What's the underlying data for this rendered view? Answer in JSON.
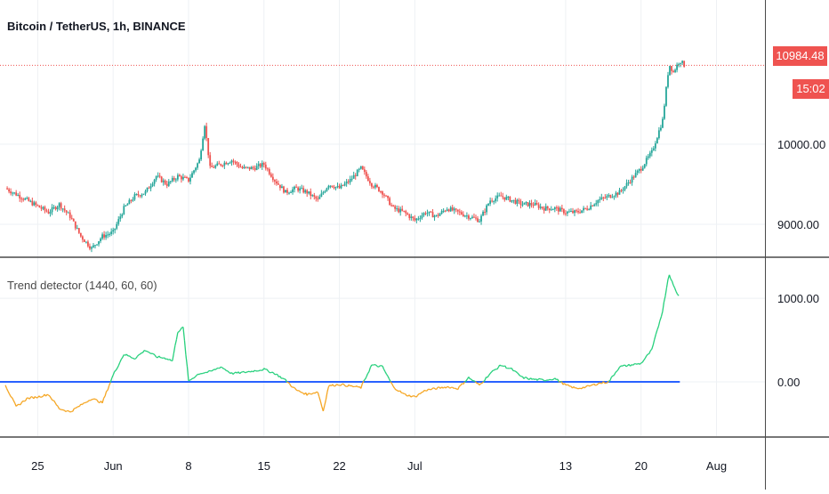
{
  "header": {
    "symbol_title": "Bitcoin / TetherUS, 1h, BINANCE",
    "indicator_title": "Trend detector (1440, 60, 60)"
  },
  "price_axis": {
    "last_price": "10984.48",
    "countdown": "15:02",
    "tag_color": "#ef5350"
  },
  "chart_data": [
    {
      "type": "candlestick",
      "title": "Bitcoin / TetherUS, 1h, BINANCE",
      "ylim": [
        8600,
        11800
      ],
      "yticks": [
        9000,
        10000
      ],
      "ytick_labels": [
        "9000.00",
        "10000.00"
      ],
      "last_price": 10984.48,
      "up_color": "#26a69a",
      "down_color": "#ef5350",
      "close_path": [
        [
          -3,
          9450
        ],
        [
          -1,
          9300
        ],
        [
          1,
          9150
        ],
        [
          2,
          9250
        ],
        [
          3,
          9100
        ],
        [
          4,
          8850
        ],
        [
          5,
          8700
        ],
        [
          6,
          8850
        ],
        [
          7,
          8900
        ],
        [
          8,
          9200
        ],
        [
          9,
          9350
        ],
        [
          10,
          9400
        ],
        [
          11,
          9600
        ],
        [
          12,
          9500
        ],
        [
          13,
          9600
        ],
        [
          14,
          9550
        ],
        [
          15,
          9800
        ],
        [
          15.5,
          10250
        ],
        [
          16,
          9700
        ],
        [
          17,
          9750
        ],
        [
          18,
          9800
        ],
        [
          19,
          9700
        ],
        [
          20,
          9700
        ],
        [
          21,
          9750
        ],
        [
          22,
          9550
        ],
        [
          23,
          9400
        ],
        [
          24,
          9450
        ],
        [
          25,
          9400
        ],
        [
          26,
          9300
        ],
        [
          27,
          9500
        ],
        [
          28,
          9450
        ],
        [
          29,
          9550
        ],
        [
          30,
          9700
        ],
        [
          31,
          9500
        ],
        [
          32,
          9400
        ],
        [
          33,
          9200
        ],
        [
          34,
          9150
        ],
        [
          35,
          9050
        ],
        [
          36,
          9150
        ],
        [
          37,
          9100
        ],
        [
          38,
          9200
        ],
        [
          39,
          9150
        ],
        [
          40,
          9100
        ],
        [
          41,
          9050
        ],
        [
          42,
          9300
        ],
        [
          43,
          9350
        ],
        [
          44,
          9300
        ],
        [
          45,
          9250
        ],
        [
          46,
          9250
        ],
        [
          47,
          9200
        ],
        [
          48,
          9200
        ],
        [
          49,
          9150
        ],
        [
          50,
          9150
        ],
        [
          51,
          9200
        ],
        [
          52,
          9300
        ],
        [
          53,
          9350
        ],
        [
          54,
          9400
        ],
        [
          55,
          9550
        ],
        [
          56,
          9700
        ],
        [
          57,
          9900
        ],
        [
          58,
          10300
        ],
        [
          58.6,
          11000
        ],
        [
          59,
          10900
        ],
        [
          59.6,
          11050
        ],
        [
          60,
          10984.48
        ]
      ]
    },
    {
      "type": "line",
      "title": "Trend detector (1440, 60, 60)",
      "ylim": [
        -650,
        1480
      ],
      "yticks": [
        0,
        1000
      ],
      "ytick_labels": [
        "0.00",
        "1000.00"
      ],
      "zero_line_color": "#2962ff",
      "positive_color": "#26d07c",
      "negative_color": "#f5a623",
      "path": [
        [
          -3,
          -40
        ],
        [
          -2,
          -300
        ],
        [
          -1,
          -200
        ],
        [
          0,
          -180
        ],
        [
          1,
          -150
        ],
        [
          2,
          -320
        ],
        [
          3,
          -360
        ],
        [
          4,
          -280
        ],
        [
          5,
          -200
        ],
        [
          6,
          -250
        ],
        [
          7,
          80
        ],
        [
          8,
          330
        ],
        [
          9,
          280
        ],
        [
          10,
          380
        ],
        [
          11,
          300
        ],
        [
          12,
          280
        ],
        [
          12.5,
          250
        ],
        [
          13,
          600
        ],
        [
          13.5,
          650
        ],
        [
          14,
          10
        ],
        [
          15,
          100
        ],
        [
          16,
          120
        ],
        [
          17,
          180
        ],
        [
          18,
          100
        ],
        [
          19,
          110
        ],
        [
          20,
          130
        ],
        [
          21,
          150
        ],
        [
          22,
          100
        ],
        [
          23,
          20
        ],
        [
          24,
          -100
        ],
        [
          25,
          -150
        ],
        [
          26,
          -120
        ],
        [
          26.5,
          -350
        ],
        [
          27,
          -50
        ],
        [
          28,
          -30
        ],
        [
          29,
          -50
        ],
        [
          30,
          -70
        ],
        [
          31,
          200
        ],
        [
          32,
          180
        ],
        [
          33,
          -60
        ],
        [
          34,
          -150
        ],
        [
          35,
          -180
        ],
        [
          36,
          -100
        ],
        [
          37,
          -80
        ],
        [
          38,
          -60
        ],
        [
          39,
          -80
        ],
        [
          40,
          50
        ],
        [
          41,
          -40
        ],
        [
          42,
          100
        ],
        [
          43,
          200
        ],
        [
          44,
          150
        ],
        [
          45,
          50
        ],
        [
          46,
          30
        ],
        [
          47,
          20
        ],
        [
          48,
          40
        ],
        [
          49,
          -40
        ],
        [
          50,
          -80
        ],
        [
          51,
          -60
        ],
        [
          52,
          -20
        ],
        [
          53,
          0
        ],
        [
          54,
          180
        ],
        [
          55,
          200
        ],
        [
          56,
          220
        ],
        [
          57,
          380
        ],
        [
          58,
          850
        ],
        [
          58.6,
          1300
        ],
        [
          59,
          1150
        ],
        [
          59.6,
          1000
        ]
      ]
    }
  ],
  "time_axis": {
    "labels": [
      "25",
      "Jun",
      "8",
      "15",
      "22",
      "Jul",
      "13",
      "20",
      "Aug"
    ],
    "days": [
      0,
      7,
      14,
      21,
      28,
      35,
      49,
      56,
      63
    ]
  }
}
